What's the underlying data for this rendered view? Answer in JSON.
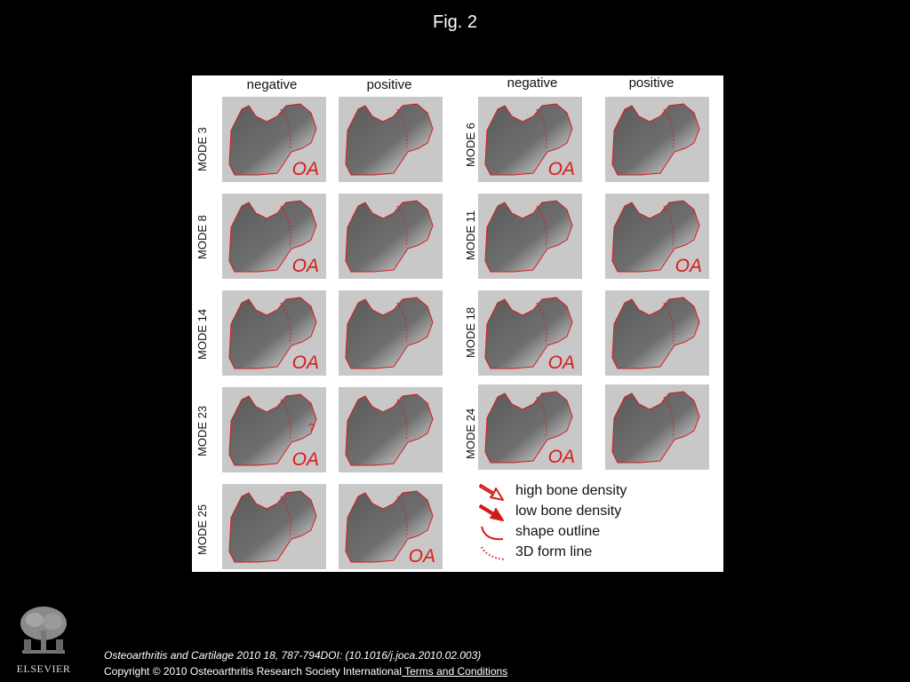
{
  "title": "Fig. 2",
  "columns": {
    "left_negative": "negative",
    "left_positive": "positive",
    "right_negative": "negative",
    "right_positive": "positive"
  },
  "modes": {
    "left": [
      "MODE 3",
      "MODE 8",
      "MODE 14",
      "MODE 23",
      "MODE 25"
    ],
    "right": [
      "MODE 6",
      "MODE 11",
      "MODE 18",
      "MODE 24"
    ]
  },
  "oa_label": "OA",
  "question_mark": "?",
  "legend": {
    "high": "high bone density",
    "low": "low bone density",
    "shape": "shape outline",
    "form": "3D form line"
  },
  "footer": {
    "citation": "Osteoarthritis and Cartilage 2010 18, 787-794DOI: (10.1016/j.joca.2010.02.003)",
    "copyright": "Copyright © 2010 Osteoarthritis Research Society International",
    "terms_link": " Terms and Conditions",
    "publisher": "ELSEVIER"
  },
  "colors": {
    "accent": "#d81b1b",
    "panel_bg": "#c8c8c8",
    "page_bg": "#000000"
  }
}
